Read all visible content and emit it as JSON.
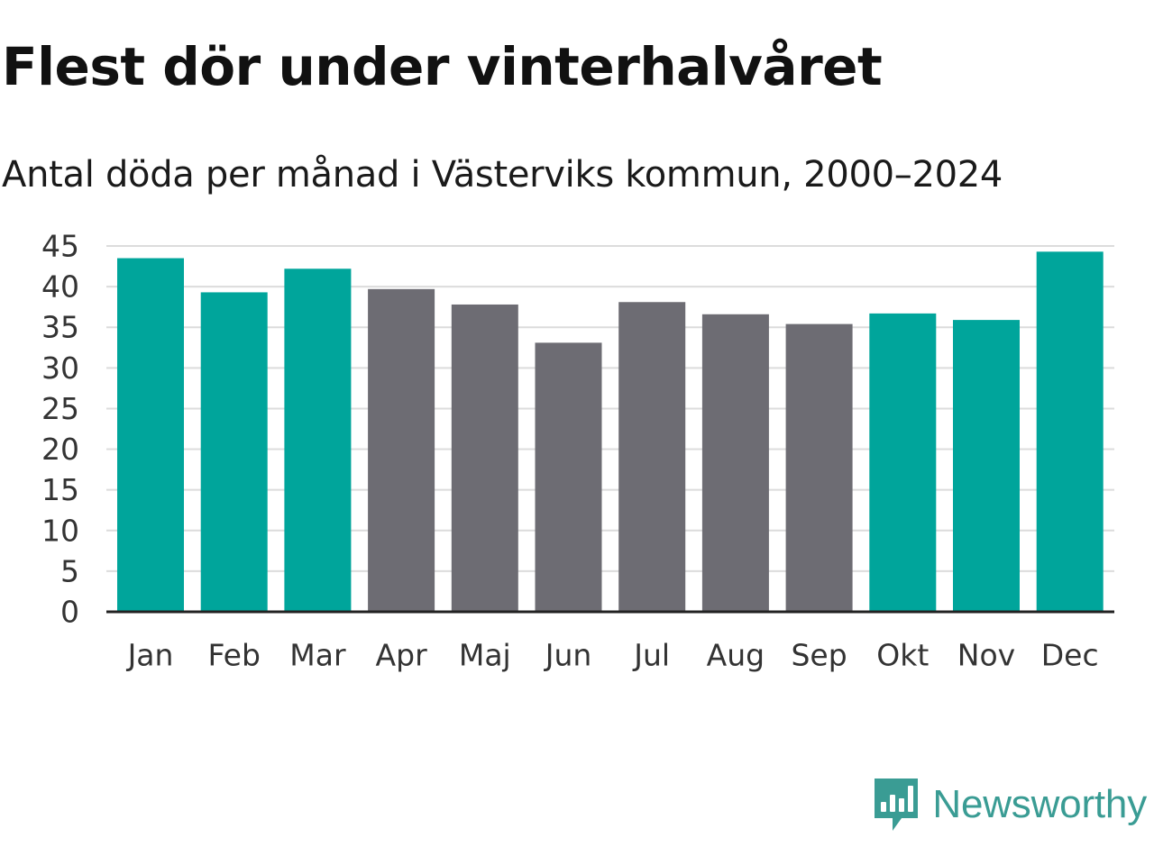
{
  "header": {
    "title": "Flest dör under vinterhalvåret",
    "subtitle": "Antal döda per månad i Västerviks kommun, 2000–2024"
  },
  "colors": {
    "winter": "#00a59b",
    "summer": "#6d6c73",
    "grid": "#dcdcdc",
    "axis": "#222222",
    "brand": "#3a9c94"
  },
  "chart_data": {
    "type": "bar",
    "title": "Flest dör under vinterhalvåret",
    "subtitle": "Antal döda per månad i Västerviks kommun, 2000–2024",
    "xlabel": "",
    "ylabel": "",
    "ylim": [
      0,
      45
    ],
    "yticks": [
      0,
      5,
      10,
      15,
      20,
      25,
      30,
      35,
      40,
      45
    ],
    "grid": true,
    "categories": [
      "Jan",
      "Feb",
      "Mar",
      "Apr",
      "Maj",
      "Jun",
      "Jul",
      "Aug",
      "Sep",
      "Okt",
      "Nov",
      "Dec"
    ],
    "values": [
      43.5,
      39.3,
      42.2,
      39.7,
      37.8,
      33.1,
      38.1,
      36.6,
      35.4,
      36.7,
      35.9,
      44.3
    ],
    "groups": [
      "winter",
      "winter",
      "winter",
      "summer",
      "summer",
      "summer",
      "summer",
      "summer",
      "summer",
      "winter",
      "winter",
      "winter"
    ]
  },
  "brand": {
    "name": "Newsworthy",
    "logo_icon": "newsworthy-logo-icon"
  }
}
